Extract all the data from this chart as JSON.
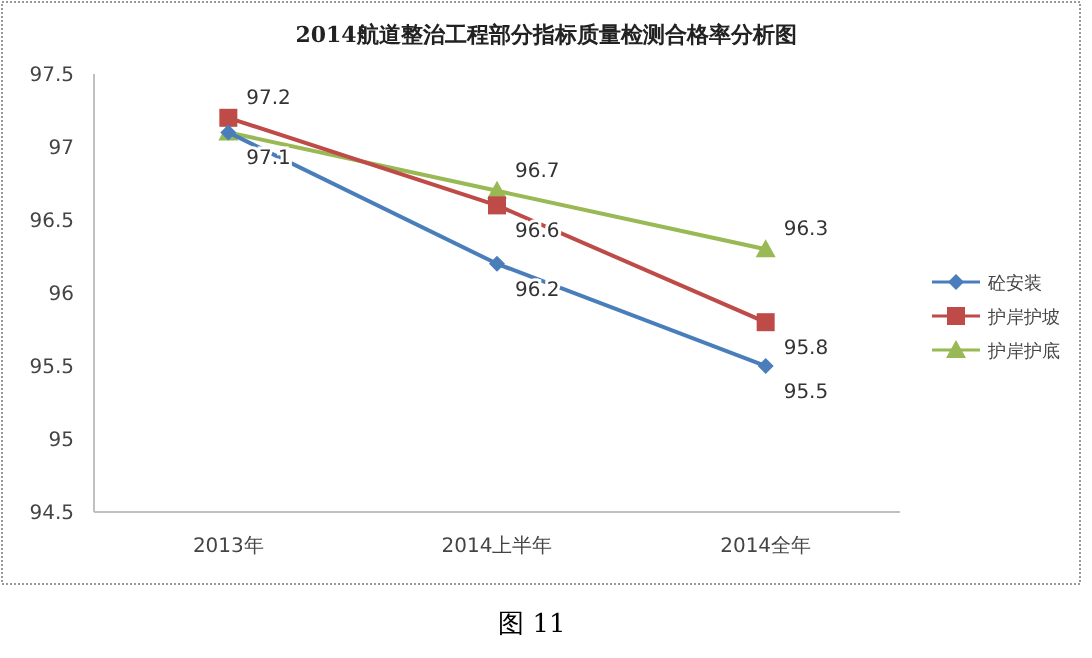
{
  "chart_data": {
    "type": "line",
    "title": "2014航道整治工程部分指标质量检测合格率分析图",
    "categories": [
      "2013年",
      "2014上半年",
      "2014全年"
    ],
    "series": [
      {
        "name": "砼安装",
        "color": "#4a7ebb",
        "marker": "diamond",
        "values": [
          97.1,
          96.2,
          95.5
        ],
        "value_labels": [
          null,
          "96.2",
          "95.5"
        ]
      },
      {
        "name": "护岸护坡",
        "color": "#be4b48",
        "marker": "square",
        "values": [
          97.2,
          96.6,
          95.8
        ],
        "value_labels": [
          "97.2",
          "96.6",
          "95.8"
        ]
      },
      {
        "name": "护岸护底",
        "color": "#98b954",
        "marker": "triangle",
        "values": [
          97.1,
          96.7,
          96.3
        ],
        "value_labels": [
          "97.1",
          "96.7",
          "96.3"
        ]
      }
    ],
    "ylim": [
      94.5,
      97.5
    ],
    "yticks": [
      94.5,
      95,
      95.5,
      96,
      96.5,
      97,
      97.5
    ],
    "legend": "right",
    "grid": false,
    "annotations": [
      "图 11"
    ]
  }
}
